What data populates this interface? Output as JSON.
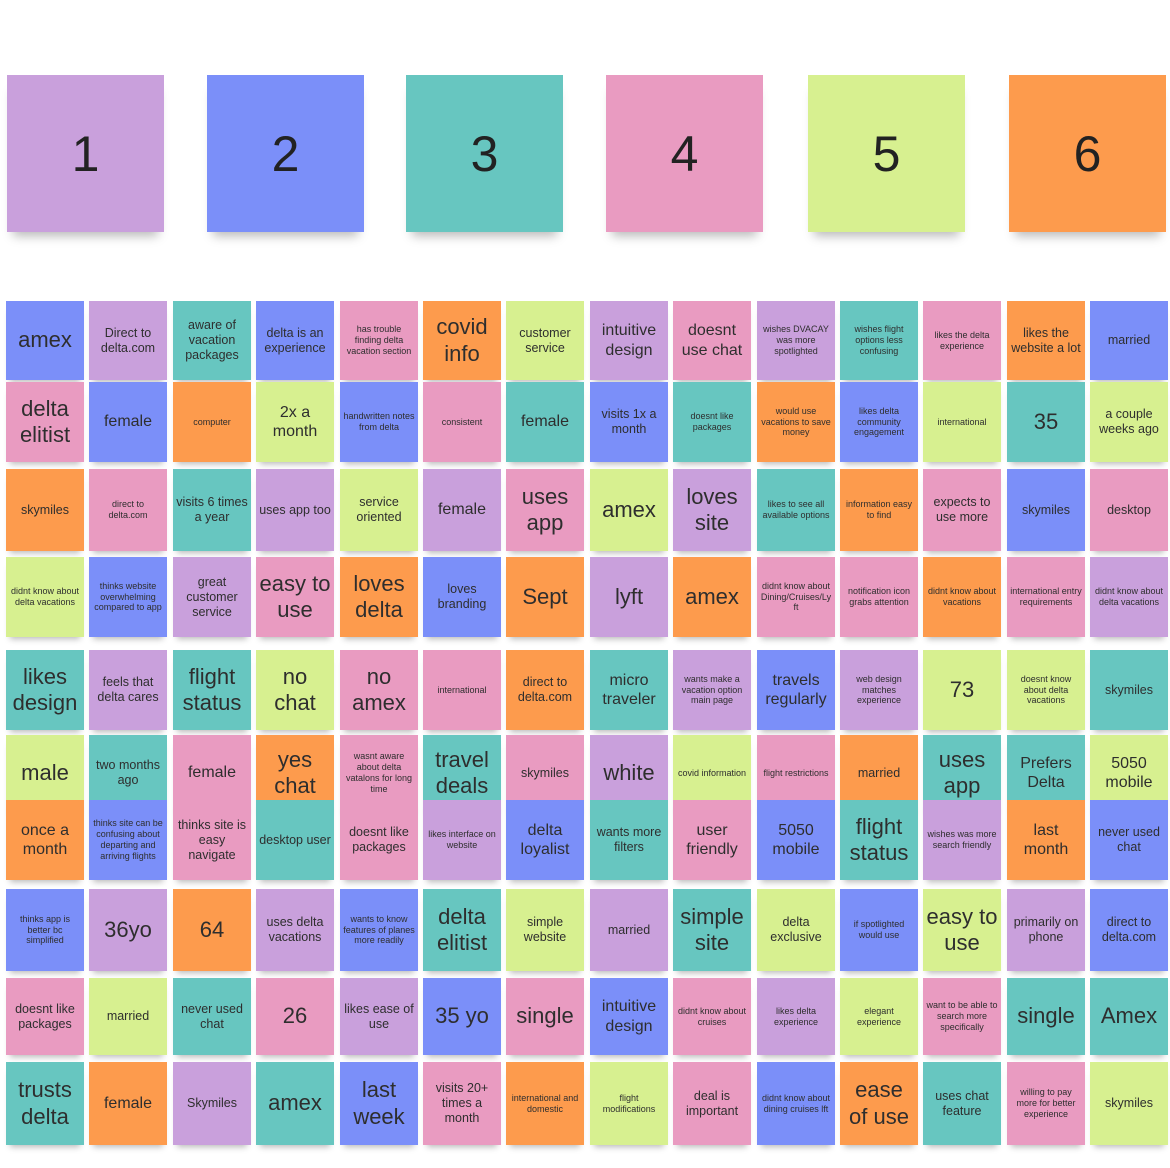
{
  "colors": {
    "purple": "#c9a0dc",
    "blue": "#7b8ff9",
    "teal": "#67c6c0",
    "pink": "#e99bc1",
    "lime": "#d7f090",
    "orange": "#fd9b4d"
  },
  "headers": [
    {
      "label": "1",
      "color": "purple"
    },
    {
      "label": "2",
      "color": "blue"
    },
    {
      "label": "3",
      "color": "teal"
    },
    {
      "label": "4",
      "color": "pink"
    },
    {
      "label": "5",
      "color": "lime"
    },
    {
      "label": "6",
      "color": "orange"
    }
  ],
  "notes": [
    [
      "amex",
      "blue",
      3
    ],
    [
      "Direct to delta.com",
      "purple",
      1
    ],
    [
      "aware of vacation packages",
      "teal",
      1
    ],
    [
      "delta is an experience",
      "blue",
      1
    ],
    [
      "has trouble finding delta vacation section",
      "pink",
      0
    ],
    [
      "covid info",
      "orange",
      3
    ],
    [
      "customer service",
      "lime",
      1
    ],
    [
      "intuitive design",
      "purple",
      2
    ],
    [
      "doesnt use chat",
      "pink",
      2
    ],
    [
      "wishes DVACAY was more spotlighted",
      "purple",
      0
    ],
    [
      "wishes flight options less confusing",
      "teal",
      0
    ],
    [
      "likes the delta experience",
      "pink",
      0
    ],
    [
      "likes the website a lot",
      "orange",
      1
    ],
    [
      "married",
      "blue",
      1
    ],
    [
      "delta elitist",
      "pink",
      3
    ],
    [
      "female",
      "blue",
      2
    ],
    [
      "computer",
      "orange",
      0
    ],
    [
      "2x a month",
      "lime",
      2
    ],
    [
      "handwritten notes from delta",
      "blue",
      0
    ],
    [
      "consistent",
      "pink",
      0
    ],
    [
      "female",
      "teal",
      2
    ],
    [
      "visits 1x a month",
      "blue",
      1
    ],
    [
      "doesnt like packages",
      "teal",
      0
    ],
    [
      "would use vacations to save money",
      "orange",
      0
    ],
    [
      "likes delta community engagement",
      "blue",
      0
    ],
    [
      "international",
      "lime",
      0
    ],
    [
      "35",
      "teal",
      3
    ],
    [
      "a couple weeks ago",
      "lime",
      1
    ],
    [
      "skymiles",
      "orange",
      1
    ],
    [
      "direct to delta.com",
      "pink",
      0
    ],
    [
      "visits 6 times a year",
      "teal",
      1
    ],
    [
      "uses app too",
      "purple",
      1
    ],
    [
      "service oriented",
      "lime",
      1
    ],
    [
      "female",
      "purple",
      2
    ],
    [
      "uses app",
      "pink",
      3
    ],
    [
      "amex",
      "lime",
      3
    ],
    [
      "loves site",
      "purple",
      3
    ],
    [
      "likes to see all available options",
      "teal",
      0
    ],
    [
      "information easy to find",
      "orange",
      0
    ],
    [
      "expects to use more",
      "pink",
      1
    ],
    [
      "skymiles",
      "blue",
      1
    ],
    [
      "desktop",
      "pink",
      1
    ],
    [
      "didnt know about delta vacations",
      "lime",
      0
    ],
    [
      "thinks website overwhelming compared to app",
      "blue",
      0
    ],
    [
      "great customer service",
      "purple",
      1
    ],
    [
      "easy to use",
      "pink",
      3
    ],
    [
      "loves delta",
      "orange",
      3
    ],
    [
      "loves branding",
      "blue",
      1
    ],
    [
      "Sept",
      "orange",
      3
    ],
    [
      "lyft",
      "purple",
      3
    ],
    [
      "amex",
      "orange",
      3
    ],
    [
      "didnt know about Dining/Cruises/Lyft",
      "pink",
      0
    ],
    [
      "notification icon grabs attention",
      "pink",
      0
    ],
    [
      "didnt know about vacations",
      "orange",
      0
    ],
    [
      "international entry requirements",
      "pink",
      0
    ],
    [
      "didnt know about delta vacations",
      "purple",
      0
    ],
    [
      "likes design",
      "teal",
      3
    ],
    [
      "feels that delta cares",
      "purple",
      1
    ],
    [
      "flight status",
      "teal",
      3
    ],
    [
      "no chat",
      "lime",
      3
    ],
    [
      "no amex",
      "pink",
      3
    ],
    [
      "international",
      "pink",
      0
    ],
    [
      "direct to delta.com",
      "orange",
      1
    ],
    [
      "micro traveler",
      "teal",
      2
    ],
    [
      "wants make a vacation option main page",
      "purple",
      0
    ],
    [
      "travels regularly",
      "blue",
      2
    ],
    [
      "web design matches experience",
      "purple",
      0
    ],
    [
      "73",
      "lime",
      3
    ],
    [
      "doesnt know about delta vacations",
      "lime",
      0
    ],
    [
      "skymiles",
      "teal",
      1
    ],
    [
      "male",
      "lime",
      3
    ],
    [
      "two months ago",
      "teal",
      1
    ],
    [
      "female",
      "pink",
      2
    ],
    [
      "yes chat",
      "orange",
      3
    ],
    [
      "wasnt aware about delta vatalons for long time",
      "pink",
      0
    ],
    [
      "travel deals",
      "teal",
      3
    ],
    [
      "skymiles",
      "pink",
      1
    ],
    [
      "white",
      "purple",
      3
    ],
    [
      "covid information",
      "lime",
      0
    ],
    [
      "flight restrictions",
      "pink",
      0
    ],
    [
      "married",
      "orange",
      1
    ],
    [
      "uses app",
      "teal",
      3
    ],
    [
      "Prefers Delta",
      "teal",
      2
    ],
    [
      "5050 mobile",
      "lime",
      2
    ],
    [
      "once a month",
      "orange",
      2
    ],
    [
      "thinks site can be confusing about departing and arriving flights",
      "blue",
      0
    ],
    [
      "thinks site is easy navigate",
      "pink",
      1
    ],
    [
      "desktop user",
      "teal",
      1
    ],
    [
      "doesnt like packages",
      "pink",
      1
    ],
    [
      "likes interface on website",
      "purple",
      0
    ],
    [
      "delta loyalist",
      "blue",
      2
    ],
    [
      "wants more filters",
      "teal",
      1
    ],
    [
      "user friendly",
      "pink",
      2
    ],
    [
      "5050 mobile",
      "blue",
      2
    ],
    [
      "flight status",
      "teal",
      3
    ],
    [
      "wishes was more search friendly",
      "purple",
      0
    ],
    [
      "last month",
      "orange",
      2
    ],
    [
      "never used chat",
      "blue",
      1
    ],
    [
      "thinks app is better bc simplified",
      "blue",
      0
    ],
    [
      "36yo",
      "purple",
      3
    ],
    [
      "64",
      "orange",
      3
    ],
    [
      "uses delta vacations",
      "purple",
      1
    ],
    [
      "wants to know features of planes more readily",
      "blue",
      0
    ],
    [
      "delta elitist",
      "teal",
      3
    ],
    [
      "simple website",
      "lime",
      1
    ],
    [
      "married",
      "purple",
      1
    ],
    [
      "simple site",
      "teal",
      3
    ],
    [
      "delta exclusive",
      "lime",
      1
    ],
    [
      "if spotlighted would use",
      "blue",
      0
    ],
    [
      "easy to use",
      "lime",
      3
    ],
    [
      "primarily on phone",
      "purple",
      1
    ],
    [
      "direct to delta.com",
      "blue",
      1
    ],
    [
      "doesnt like packages",
      "pink",
      1
    ],
    [
      "married",
      "lime",
      1
    ],
    [
      "never used chat",
      "teal",
      1
    ],
    [
      "26",
      "pink",
      3
    ],
    [
      "likes ease of use",
      "purple",
      1
    ],
    [
      "35 yo",
      "blue",
      3
    ],
    [
      "single",
      "pink",
      3
    ],
    [
      "intuitive design",
      "blue",
      2
    ],
    [
      "didnt know about cruises",
      "pink",
      0
    ],
    [
      "likes delta experience",
      "purple",
      0
    ],
    [
      "elegant experience",
      "lime",
      0
    ],
    [
      "want to be able to search more specifically",
      "pink",
      0
    ],
    [
      "single",
      "teal",
      3
    ],
    [
      "Amex",
      "teal",
      3
    ],
    [
      "trusts delta",
      "teal",
      3
    ],
    [
      "female",
      "orange",
      2
    ],
    [
      "Skymiles",
      "purple",
      1
    ],
    [
      "amex",
      "teal",
      3
    ],
    [
      "last week",
      "blue",
      3
    ],
    [
      "visits 20+ times a month",
      "pink",
      1
    ],
    [
      "international and domestic",
      "orange",
      0
    ],
    [
      "flight modifications",
      "lime",
      0
    ],
    [
      "deal is important",
      "pink",
      1
    ],
    [
      "didnt know about dining cruises lft",
      "blue",
      0
    ],
    [
      "ease of use",
      "orange",
      3
    ],
    [
      "uses chat feature",
      "teal",
      1
    ],
    [
      "willing to pay more for better experience",
      "pink",
      0
    ],
    [
      "skymiles",
      "lime",
      1
    ]
  ]
}
